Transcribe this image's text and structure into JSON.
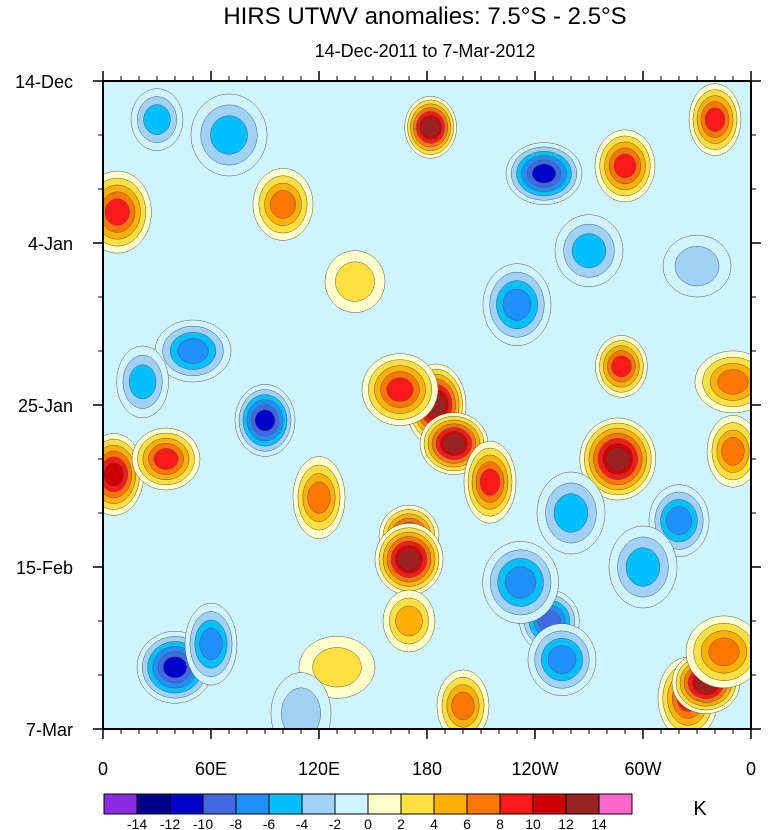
{
  "chart_data": {
    "type": "heatmap",
    "title": "HIRS UTWV anomalies: 7.5°S - 2.5°S",
    "subtitle": "14-Dec-2011 to 7-Mar-2012",
    "x_tick_labels": [
      "0",
      "60E",
      "120E",
      "180",
      "120W",
      "60W",
      "0"
    ],
    "x_ticks_deg_east": [
      0,
      60,
      120,
      180,
      240,
      300,
      360
    ],
    "y_tick_labels": [
      "14-Dec",
      "4-Jan",
      "25-Jan",
      "15-Feb",
      "7-Mar"
    ],
    "y_ticks_dates": [
      "2011-12-14",
      "2012-01-04",
      "2012-01-25",
      "2012-02-15",
      "2012-03-07"
    ],
    "xlim_deg_east": [
      0,
      360
    ],
    "ylim_dates": [
      "2011-12-14",
      "2012-03-07"
    ],
    "y_direction": "time increases downward",
    "colorbar": {
      "unit_label": "K",
      "level_labels": [
        "-14",
        "-12",
        "-10",
        "-8",
        "-6",
        "-4",
        "-2",
        "0",
        "2",
        "4",
        "6",
        "8",
        "10",
        "12",
        "14"
      ],
      "colors": [
        "#8b2be2",
        "#00008b",
        "#0000cd",
        "#4169e1",
        "#1e90ff",
        "#00bfff",
        "#a0d2f8",
        "#d0f4ff",
        "#ffffcc",
        "#ffe040",
        "#ffb000",
        "#ff7700",
        "#ff1a1a",
        "#cc0000",
        "#992222",
        "#ff66cc"
      ]
    },
    "anomaly_features": [
      {
        "lon_deg_east": 182,
        "date": "2011-12-20",
        "value": 14
      },
      {
        "lon_deg_east": 290,
        "date": "2011-12-25",
        "value": 10
      },
      {
        "lon_deg_east": 8,
        "date": "2011-12-31",
        "value": 10
      },
      {
        "lon_deg_east": 245,
        "date": "2011-12-26",
        "value": -12
      },
      {
        "lon_deg_east": 340,
        "date": "2011-12-19",
        "value": 10
      },
      {
        "lon_deg_east": 185,
        "date": "2012-01-25",
        "value": 14
      },
      {
        "lon_deg_east": 195,
        "date": "2012-01-30",
        "value": 14
      },
      {
        "lon_deg_east": 165,
        "date": "2012-01-23",
        "value": 10
      },
      {
        "lon_deg_east": 215,
        "date": "2012-02-04",
        "value": 10
      },
      {
        "lon_deg_east": 170,
        "date": "2012-02-11",
        "value": 12
      },
      {
        "lon_deg_east": 170,
        "date": "2012-02-14",
        "value": 14
      },
      {
        "lon_deg_east": 286,
        "date": "2012-02-01",
        "value": 14
      },
      {
        "lon_deg_east": 288,
        "date": "2012-01-20",
        "value": 10
      },
      {
        "lon_deg_east": 90,
        "date": "2012-01-27",
        "value": -12
      },
      {
        "lon_deg_east": 230,
        "date": "2012-01-12",
        "value": -8
      },
      {
        "lon_deg_east": 50,
        "date": "2012-01-18",
        "value": -8
      },
      {
        "lon_deg_east": 22,
        "date": "2012-01-22",
        "value": -6
      },
      {
        "lon_deg_east": 6,
        "date": "2012-02-03",
        "value": 12
      },
      {
        "lon_deg_east": 35,
        "date": "2012-02-01",
        "value": 10
      },
      {
        "lon_deg_east": 40,
        "date": "2012-02-28",
        "value": -12
      },
      {
        "lon_deg_east": 60,
        "date": "2012-02-25",
        "value": -8
      },
      {
        "lon_deg_east": 248,
        "date": "2012-02-22",
        "value": -10
      },
      {
        "lon_deg_east": 255,
        "date": "2012-02-27",
        "value": -8
      },
      {
        "lon_deg_east": 232,
        "date": "2012-02-17",
        "value": -8
      },
      {
        "lon_deg_east": 170,
        "date": "2012-02-22",
        "value": 6
      },
      {
        "lon_deg_east": 320,
        "date": "2012-02-09",
        "value": -8
      },
      {
        "lon_deg_east": 300,
        "date": "2012-02-15",
        "value": -6
      },
      {
        "lon_deg_east": 350,
        "date": "2012-01-22",
        "value": 8
      },
      {
        "lon_deg_east": 350,
        "date": "2012-01-31",
        "value": 8
      },
      {
        "lon_deg_east": 325,
        "date": "2012-03-03",
        "value": 10
      },
      {
        "lon_deg_east": 335,
        "date": "2012-03-01",
        "value": 14
      },
      {
        "lon_deg_east": 345,
        "date": "2012-02-26",
        "value": 8
      },
      {
        "lon_deg_east": 120,
        "date": "2012-02-06",
        "value": 8
      },
      {
        "lon_deg_east": 140,
        "date": "2012-01-09",
        "value": 4
      },
      {
        "lon_deg_east": 270,
        "date": "2012-01-05",
        "value": -6
      },
      {
        "lon_deg_east": 70,
        "date": "2011-12-21",
        "value": -6
      },
      {
        "lon_deg_east": 30,
        "date": "2011-12-19",
        "value": -6
      },
      {
        "lon_deg_east": 100,
        "date": "2011-12-30",
        "value": 8
      },
      {
        "lon_deg_east": 260,
        "date": "2012-02-08",
        "value": -6
      },
      {
        "lon_deg_east": 130,
        "date": "2012-02-28",
        "value": 4
      },
      {
        "lon_deg_east": 200,
        "date": "2012-03-04",
        "value": 8
      },
      {
        "lon_deg_east": 110,
        "date": "2012-03-05",
        "value": -4
      },
      {
        "lon_deg_east": 330,
        "date": "2012-01-07",
        "value": -4
      }
    ]
  }
}
